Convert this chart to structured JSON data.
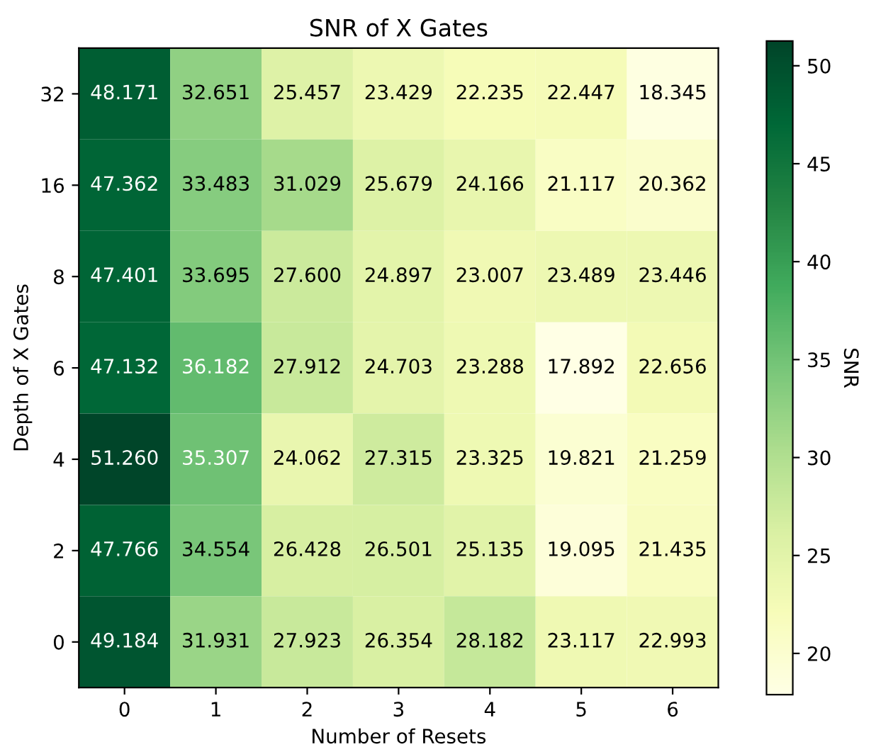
{
  "chart_data": {
    "type": "heatmap",
    "title": "SNR of X Gates",
    "xlabel": "Number of Resets",
    "ylabel": "Depth of X Gates",
    "clabel": "SNR",
    "categories": [
      "0",
      "1",
      "2",
      "3",
      "4",
      "5",
      "6"
    ],
    "y_categories": [
      "32",
      "16",
      "8",
      "6",
      "4",
      "2",
      "0"
    ],
    "cells": [
      [
        48.171,
        32.651,
        25.457,
        23.429,
        22.235,
        22.447,
        18.345
      ],
      [
        47.362,
        33.483,
        31.029,
        25.679,
        24.166,
        21.117,
        20.362
      ],
      [
        47.401,
        33.695,
        27.6,
        24.897,
        23.007,
        23.489,
        23.446
      ],
      [
        47.132,
        36.182,
        27.912,
        24.703,
        23.288,
        17.892,
        22.656
      ],
      [
        51.26,
        35.307,
        24.062,
        27.315,
        23.325,
        19.821,
        21.259
      ],
      [
        47.766,
        34.554,
        26.428,
        26.501,
        25.135,
        19.095,
        21.435
      ],
      [
        49.184,
        31.931,
        27.923,
        26.354,
        28.182,
        23.117,
        22.993
      ]
    ],
    "cell_labels": [
      [
        "48.171",
        "32.651",
        "25.457",
        "23.429",
        "22.235",
        "22.447",
        "18.345"
      ],
      [
        "47.362",
        "33.483",
        "31.029",
        "25.679",
        "24.166",
        "21.117",
        "20.362"
      ],
      [
        "47.401",
        "33.695",
        "27.600",
        "24.897",
        "23.007",
        "23.489",
        "23.446"
      ],
      [
        "47.132",
        "36.182",
        "27.912",
        "24.703",
        "23.288",
        "17.892",
        "22.656"
      ],
      [
        "51.260",
        "35.307",
        "24.062",
        "27.315",
        "23.325",
        "19.821",
        "21.259"
      ],
      [
        "47.766",
        "34.554",
        "26.428",
        "26.501",
        "25.135",
        "19.095",
        "21.435"
      ],
      [
        "49.184",
        "31.931",
        "27.923",
        "26.354",
        "28.182",
        "23.117",
        "22.993"
      ]
    ],
    "clim": [
      17.892,
      51.26
    ],
    "cticks": [
      20,
      25,
      30,
      35,
      40,
      45,
      50
    ]
  }
}
